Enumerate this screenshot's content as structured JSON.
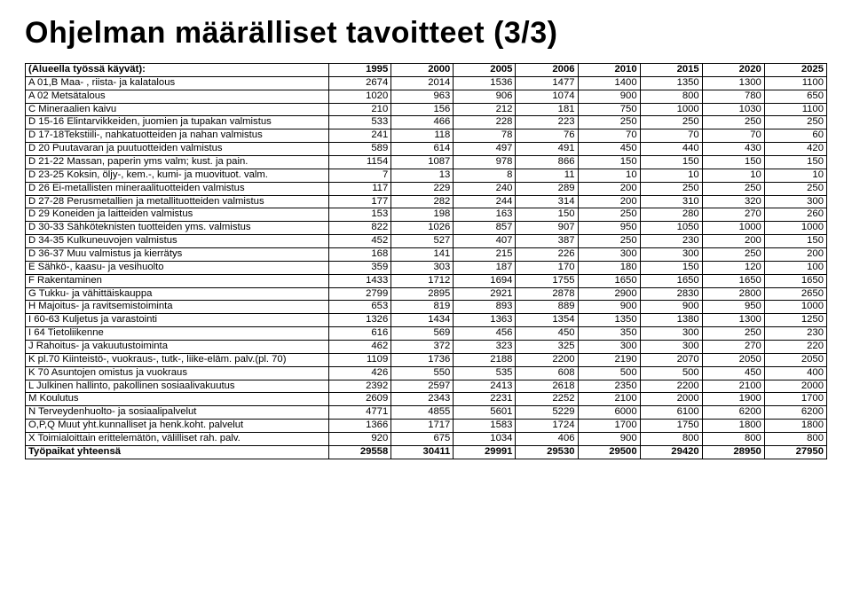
{
  "title": "Ohjelman määrälliset tavoitteet (3/3)",
  "table": {
    "header_label": "(Alueella työssä käyvät):",
    "years": [
      "1995",
      "2000",
      "2005",
      "2006",
      "2010",
      "2015",
      "2020",
      "2025"
    ],
    "rows": [
      {
        "label": "A 01,B Maa- , riista- ja kalatalous",
        "vals": [
          "2674",
          "2014",
          "1536",
          "1477",
          "1400",
          "1350",
          "1300",
          "1100"
        ]
      },
      {
        "label": "A 02 Metsätalous",
        "vals": [
          "1020",
          "963",
          "906",
          "1074",
          "900",
          "800",
          "780",
          "650"
        ]
      },
      {
        "label": "C Mineraalien kaivu",
        "vals": [
          "210",
          "156",
          "212",
          "181",
          "750",
          "1000",
          "1030",
          "1100"
        ]
      },
      {
        "label": "D 15-16 Elintarvikkeiden, juomien ja tupakan valmistus",
        "vals": [
          "533",
          "466",
          "228",
          "223",
          "250",
          "250",
          "250",
          "250"
        ]
      },
      {
        "label": "D 17-18Tekstiili-, nahkatuotteiden ja nahan valmistus",
        "vals": [
          "241",
          "118",
          "78",
          "76",
          "70",
          "70",
          "70",
          "60"
        ]
      },
      {
        "label": "D 20 Puutavaran ja puutuotteiden valmistus",
        "vals": [
          "589",
          "614",
          "497",
          "491",
          "450",
          "440",
          "430",
          "420"
        ]
      },
      {
        "label": "D 21-22 Massan, paperin yms valm; kust. ja pain.",
        "vals": [
          "1154",
          "1087",
          "978",
          "866",
          "150",
          "150",
          "150",
          "150"
        ]
      },
      {
        "label": "D 23-25 Koksin, öljy-, kem.-, kumi- ja muovituot. valm.",
        "vals": [
          "7",
          "13",
          "8",
          "11",
          "10",
          "10",
          "10",
          "10"
        ]
      },
      {
        "label": "D 26 Ei-metallisten mineraalituotteiden valmistus",
        "vals": [
          "117",
          "229",
          "240",
          "289",
          "200",
          "250",
          "250",
          "250"
        ]
      },
      {
        "label": "D 27-28 Perusmetallien ja metallituotteiden valmistus",
        "vals": [
          "177",
          "282",
          "244",
          "314",
          "200",
          "310",
          "320",
          "300"
        ]
      },
      {
        "label": "D 29 Koneiden ja laitteiden valmistus",
        "vals": [
          "153",
          "198",
          "163",
          "150",
          "250",
          "280",
          "270",
          "260"
        ]
      },
      {
        "label": "D 30-33 Sähköteknisten tuotteiden yms. valmistus",
        "vals": [
          "822",
          "1026",
          "857",
          "907",
          "950",
          "1050",
          "1000",
          "1000"
        ]
      },
      {
        "label": "D 34-35 Kulkuneuvojen valmistus",
        "vals": [
          "452",
          "527",
          "407",
          "387",
          "250",
          "230",
          "200",
          "150"
        ]
      },
      {
        "label": "D 36-37 Muu valmistus  ja kierrätys",
        "vals": [
          "168",
          "141",
          "215",
          "226",
          "300",
          "300",
          "250",
          "200"
        ]
      },
      {
        "label": "E Sähkö-, kaasu- ja vesihuolto",
        "vals": [
          "359",
          "303",
          "187",
          "170",
          "180",
          "150",
          "120",
          "100"
        ]
      },
      {
        "label": "F Rakentaminen",
        "vals": [
          "1433",
          "1712",
          "1694",
          "1755",
          "1650",
          "1650",
          "1650",
          "1650"
        ]
      },
      {
        "label": "G Tukku- ja vähittäiskauppa",
        "vals": [
          "2799",
          "2895",
          "2921",
          "2878",
          "2900",
          "2830",
          "2800",
          "2650"
        ]
      },
      {
        "label": "H Majoitus- ja ravitsemistoiminta",
        "vals": [
          "653",
          "819",
          "893",
          "889",
          "900",
          "900",
          "950",
          "1000"
        ]
      },
      {
        "label": "I 60-63  Kuljetus ja varastointi",
        "vals": [
          "1326",
          "1434",
          "1363",
          "1354",
          "1350",
          "1380",
          "1300",
          "1250"
        ]
      },
      {
        "label": "I 64 Tietoliikenne",
        "vals": [
          "616",
          "569",
          "456",
          "450",
          "350",
          "300",
          "250",
          "230"
        ]
      },
      {
        "label": "J Rahoitus- ja vakuutustoiminta",
        "vals": [
          "462",
          "372",
          "323",
          "325",
          "300",
          "300",
          "270",
          "220"
        ]
      },
      {
        "label": "K pl.70 Kiinteistö-, vuokraus-, tutk-, liike-eläm. palv.(pl. 70)",
        "vals": [
          "1109",
          "1736",
          "2188",
          "2200",
          "2190",
          "2070",
          "2050",
          "2050"
        ]
      },
      {
        "label": "K 70 Asuntojen omistus ja vuokraus",
        "vals": [
          "426",
          "550",
          "535",
          "608",
          "500",
          "500",
          "450",
          "400"
        ]
      },
      {
        "label": "L Julkinen hallinto, pakollinen sosiaalivakuutus",
        "vals": [
          "2392",
          "2597",
          "2413",
          "2618",
          "2350",
          "2200",
          "2100",
          "2000"
        ]
      },
      {
        "label": "M Koulutus",
        "vals": [
          "2609",
          "2343",
          "2231",
          "2252",
          "2100",
          "2000",
          "1900",
          "1700"
        ]
      },
      {
        "label": "N Terveydenhuolto- ja sosiaalipalvelut",
        "vals": [
          "4771",
          "4855",
          "5601",
          "5229",
          "6000",
          "6100",
          "6200",
          "6200"
        ]
      },
      {
        "label": "O,P,Q Muut yht.kunnalliset ja henk.koht. palvelut",
        "vals": [
          "1366",
          "1717",
          "1583",
          "1724",
          "1700",
          "1750",
          "1800",
          "1800"
        ]
      },
      {
        "label": "X Toimialoittain erittelemätön, välilliset rah. palv.",
        "vals": [
          "920",
          "675",
          "1034",
          "406",
          "900",
          "800",
          "800",
          "800"
        ]
      }
    ],
    "total": {
      "label": "Työpaikat yhteensä",
      "vals": [
        "29558",
        "30411",
        "29991",
        "29530",
        "29500",
        "29420",
        "28950",
        "27950"
      ]
    }
  },
  "colors": {
    "background": "#ffffff",
    "text": "#000000",
    "border": "#000000"
  }
}
